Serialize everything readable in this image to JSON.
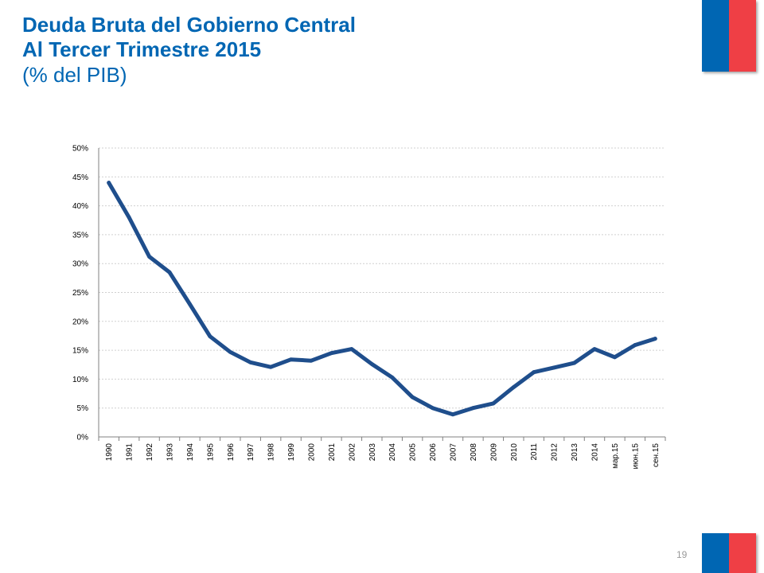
{
  "header": {
    "title_line1": "Deuda Bruta del Gobierno Central",
    "title_line2": "Al Tercer Trimestre 2015",
    "subtitle": "(% del PIB)"
  },
  "footer": {
    "page_number": "19"
  },
  "colors": {
    "title": "#0066b3",
    "series_line": "#1f4e8c",
    "flag_blue": "#0066b3",
    "flag_red": "#ef3f45",
    "gridline": "#d0d0d0"
  },
  "chart_data": {
    "type": "line",
    "title": "Deuda Bruta del Gobierno Central Al Tercer Trimestre 2015",
    "subtitle": "(% del PIB)",
    "xlabel": "",
    "ylabel": "",
    "ylim": [
      0,
      50
    ],
    "y_ticks": [
      "0%",
      "5%",
      "10%",
      "15%",
      "20%",
      "25%",
      "30%",
      "35%",
      "40%",
      "45%",
      "50%"
    ],
    "grid": true,
    "legend": "none",
    "categories": [
      "1990",
      "1991",
      "1992",
      "1993",
      "1994",
      "1995",
      "1996",
      "1997",
      "1998",
      "1999",
      "2000",
      "2001",
      "2002",
      "2003",
      "2004",
      "2005",
      "2006",
      "2007",
      "2008",
      "2009",
      "2010",
      "2011",
      "2012",
      "2013",
      "2014",
      "мар.15",
      "июн.15",
      "сен.15"
    ],
    "series": [
      {
        "values": [
          44.0,
          38.0,
          31.2,
          28.5,
          23.0,
          17.4,
          14.7,
          12.9,
          12.1,
          13.4,
          13.2,
          14.5,
          15.2,
          12.6,
          10.3,
          6.9,
          5.0,
          3.9,
          5.0,
          5.8,
          8.6,
          11.2,
          12.0,
          12.8,
          15.2,
          13.8,
          15.9,
          17.0
        ]
      }
    ]
  }
}
